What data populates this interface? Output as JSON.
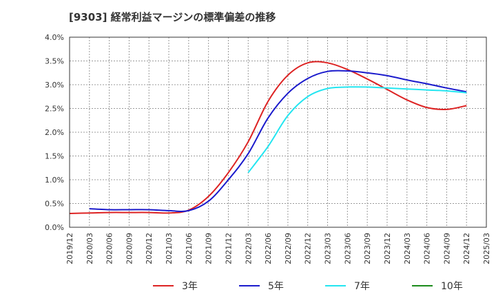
{
  "chart_data": {
    "type": "line",
    "title": "[9303]  経常利益マージンの標準偏差の推移",
    "xlabel": "",
    "ylabel": "",
    "ylim": [
      0,
      4.0
    ],
    "y_ticks": [
      "0.0%",
      "0.5%",
      "1.0%",
      "1.5%",
      "2.0%",
      "2.5%",
      "3.0%",
      "3.5%",
      "4.0%"
    ],
    "x_ticks": [
      "2019/12",
      "2020/03",
      "2020/06",
      "2020/09",
      "2020/12",
      "2021/03",
      "2021/06",
      "2021/09",
      "2021/12",
      "2022/03",
      "2022/06",
      "2022/09",
      "2022/12",
      "2023/03",
      "2023/06",
      "2023/09",
      "2023/12",
      "2024/03",
      "2024/06",
      "2024/09",
      "2024/12",
      "2025/03"
    ],
    "grid": true,
    "legend_position": "bottom",
    "series": [
      {
        "name": "3年",
        "color": "#dd2222",
        "points": [
          [
            "2019/12",
            0.29
          ],
          [
            "2020/03",
            0.3
          ],
          [
            "2020/06",
            0.31
          ],
          [
            "2020/09",
            0.31
          ],
          [
            "2020/12",
            0.31
          ],
          [
            "2021/03",
            0.3
          ],
          [
            "2021/06",
            0.36
          ],
          [
            "2021/09",
            0.65
          ],
          [
            "2021/12",
            1.15
          ],
          [
            "2022/03",
            1.8
          ],
          [
            "2022/06",
            2.65
          ],
          [
            "2022/09",
            3.2
          ],
          [
            "2022/12",
            3.46
          ],
          [
            "2023/03",
            3.46
          ],
          [
            "2023/06",
            3.32
          ],
          [
            "2023/09",
            3.12
          ],
          [
            "2023/12",
            2.9
          ],
          [
            "2024/03",
            2.68
          ],
          [
            "2024/06",
            2.52
          ],
          [
            "2024/09",
            2.48
          ],
          [
            "2024/12",
            2.56
          ]
        ]
      },
      {
        "name": "5年",
        "color": "#1a1acc",
        "points": [
          [
            "2020/03",
            0.39
          ],
          [
            "2020/06",
            0.37
          ],
          [
            "2020/09",
            0.37
          ],
          [
            "2020/12",
            0.37
          ],
          [
            "2021/03",
            0.35
          ],
          [
            "2021/06",
            0.35
          ],
          [
            "2021/09",
            0.55
          ],
          [
            "2021/12",
            1.0
          ],
          [
            "2022/03",
            1.55
          ],
          [
            "2022/06",
            2.3
          ],
          [
            "2022/09",
            2.82
          ],
          [
            "2022/12",
            3.13
          ],
          [
            "2023/03",
            3.28
          ],
          [
            "2023/06",
            3.29
          ],
          [
            "2023/09",
            3.25
          ],
          [
            "2023/12",
            3.19
          ],
          [
            "2024/03",
            3.1
          ],
          [
            "2024/06",
            3.02
          ],
          [
            "2024/09",
            2.93
          ],
          [
            "2024/12",
            2.85
          ]
        ]
      },
      {
        "name": "7年",
        "color": "#22e5f0",
        "points": [
          [
            "2022/03",
            1.15
          ],
          [
            "2022/06",
            1.7
          ],
          [
            "2022/09",
            2.35
          ],
          [
            "2022/12",
            2.75
          ],
          [
            "2023/03",
            2.92
          ],
          [
            "2023/06",
            2.95
          ],
          [
            "2023/09",
            2.95
          ],
          [
            "2023/12",
            2.93
          ],
          [
            "2024/03",
            2.91
          ],
          [
            "2024/06",
            2.89
          ],
          [
            "2024/09",
            2.87
          ],
          [
            "2024/12",
            2.83
          ]
        ]
      },
      {
        "name": "10年",
        "color": "#1a8a1a",
        "points": []
      }
    ]
  }
}
